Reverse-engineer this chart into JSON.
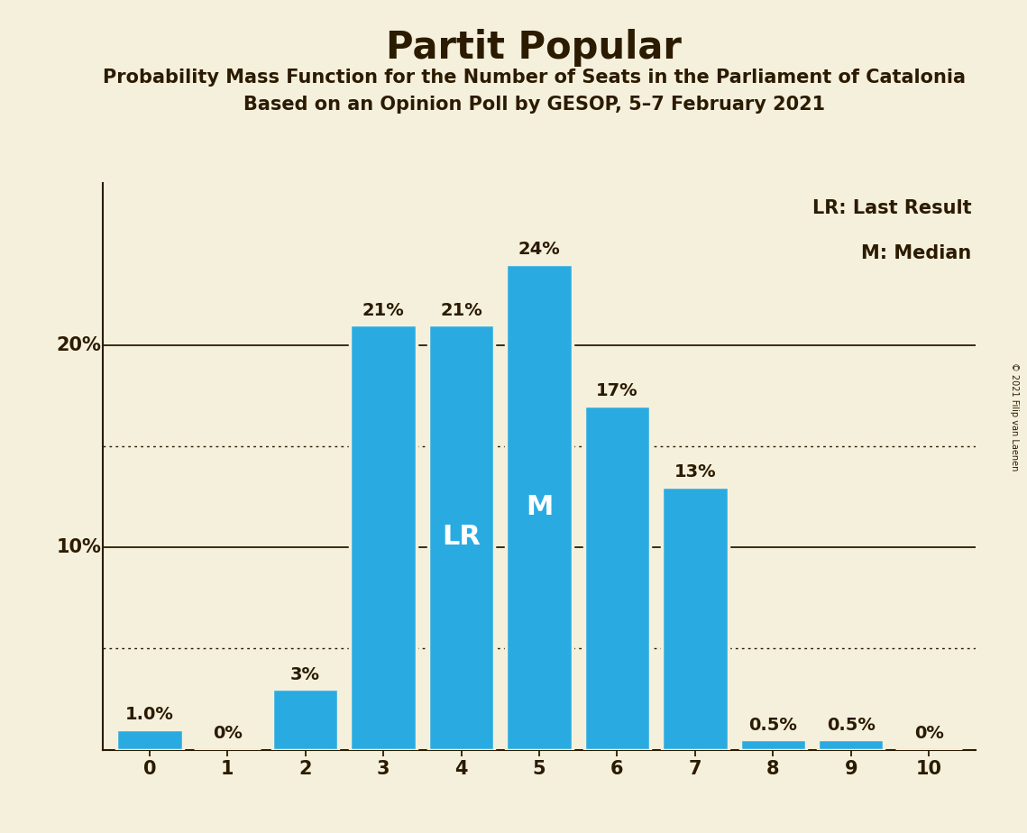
{
  "title": "Partit Popular",
  "subtitle1": "Probability Mass Function for the Number of Seats in the Parliament of Catalonia",
  "subtitle2": "Based on an Opinion Poll by GESOP, 5–7 February 2021",
  "copyright": "© 2021 Filip van Laenen",
  "categories": [
    0,
    1,
    2,
    3,
    4,
    5,
    6,
    7,
    8,
    9,
    10
  ],
  "values": [
    1.0,
    0.0,
    3.0,
    21.0,
    21.0,
    24.0,
    17.0,
    13.0,
    0.5,
    0.5,
    0.0
  ],
  "labels": [
    "1.0%",
    "0%",
    "3%",
    "21%",
    "21%",
    "24%",
    "17%",
    "13%",
    "0.5%",
    "0.5%",
    "0%"
  ],
  "bar_color": "#29ABE2",
  "bar_edge_color": "#F5F0DC",
  "background_color": "#F5F0DC",
  "text_color": "#2B1B00",
  "dotted_lines": [
    5.0,
    15.0
  ],
  "solid_lines": [
    10.0,
    20.0
  ],
  "lr_bar_idx": 4,
  "median_bar_idx": 5,
  "legend_lr": "LR: Last Result",
  "legend_m": "M: Median",
  "ylim": [
    0,
    28.0
  ],
  "xlim": [
    -0.6,
    10.6
  ],
  "bar_width": 0.85,
  "label_fontsize": 14,
  "lr_m_fontsize": 22,
  "title_fontsize": 30,
  "subtitle_fontsize": 15,
  "axis_label_fontsize": 15,
  "legend_fontsize": 15,
  "copyright_fontsize": 7
}
